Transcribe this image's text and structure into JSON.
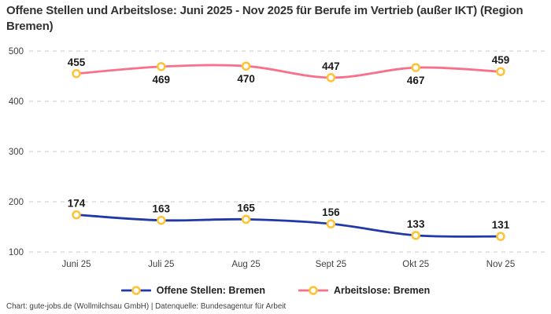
{
  "title": "Offene Stellen und Arbeitslose: Juni 2025 - Nov 2025 für Berufe im Vertrieb (außer IKT) (Region Bremen)",
  "footer": "Chart: gute-jobs.de (Wollmilchsau GmbH) | Datenquelle: Bundesagentur für Arbeit",
  "colors": {
    "background": "#ffffff",
    "title_text": "#333333",
    "grid": "#c9c9c9",
    "axis_text": "#404040",
    "value_label_text": "#1b1b1b",
    "marker_fill": "#ffffff",
    "marker_stroke": "#ffc233",
    "series_offene_stellen": "#2038a8",
    "series_arbeitslose": "#f8708a",
    "footer_text": "#3f3f3f"
  },
  "chart_data": {
    "type": "line",
    "title": "Offene Stellen und Arbeitslose: Juni 2025 - Nov 2025 für Berufe im Vertrieb (außer IKT) (Region Bremen)",
    "categories": [
      "Juni 25",
      "Juli 25",
      "Aug 25",
      "Sept 25",
      "Okt 25",
      "Nov 25"
    ],
    "series": [
      {
        "name": "Offene Stellen: Bremen",
        "color": "#2038a8",
        "values": [
          174,
          163,
          165,
          156,
          133,
          131
        ],
        "label_positions": [
          "above",
          "above",
          "above",
          "above",
          "above",
          "above"
        ]
      },
      {
        "name": "Arbeitslose: Bremen",
        "color": "#f8708a",
        "values": [
          455,
          469,
          470,
          447,
          467,
          459
        ],
        "label_positions": [
          "above",
          "below",
          "below",
          "above",
          "below",
          "above"
        ]
      }
    ],
    "xlabel": "",
    "ylabel": "",
    "yticks": [
      100,
      200,
      300,
      400,
      500
    ],
    "ylim": [
      60,
      510
    ],
    "grid": "horizontal-dashed",
    "legend_position": "bottom",
    "marker": "circle-gold-ring",
    "line_style": "smooth",
    "source_note": "Chart: gute-jobs.de (Wollmilchsau GmbH) | Datenquelle: Bundesagentur für Arbeit"
  }
}
